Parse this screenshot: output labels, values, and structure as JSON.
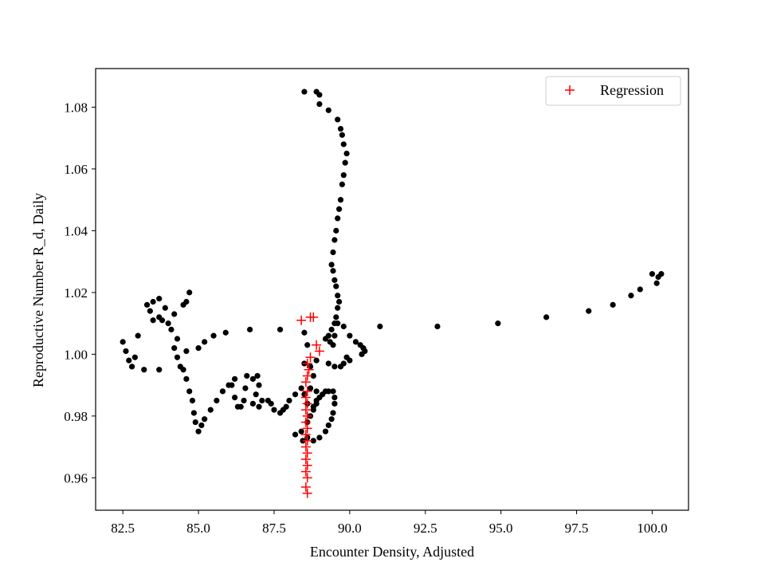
{
  "chart_data": {
    "type": "scatter",
    "xlabel": "Encounter Density, Adjusted",
    "ylabel": "Reproductive Number R_d, Daily",
    "xlim": [
      81.6,
      101.2
    ],
    "ylim": [
      0.9495,
      1.0925
    ],
    "xticks": [
      82.5,
      85.0,
      87.5,
      90.0,
      92.5,
      95.0,
      97.5,
      100.0
    ],
    "xtick_labels": [
      "82.5",
      "85.0",
      "87.5",
      "90.0",
      "92.5",
      "95.0",
      "97.5",
      "100.0"
    ],
    "yticks": [
      0.96,
      0.98,
      1.0,
      1.02,
      1.04,
      1.06,
      1.08
    ],
    "ytick_labels": [
      "0.96",
      "0.98",
      "1.00",
      "1.02",
      "1.04",
      "1.06",
      "1.08"
    ],
    "legend_position": "upper right",
    "series": [
      {
        "marker": "dot",
        "color": "#000000",
        "points": [
          [
            88.5,
            1.085
          ],
          [
            88.9,
            1.085
          ],
          [
            89.0,
            1.084
          ],
          [
            89.0,
            1.081
          ],
          [
            89.3,
            1.079
          ],
          [
            89.6,
            1.076
          ],
          [
            89.7,
            1.073
          ],
          [
            89.75,
            1.071
          ],
          [
            89.8,
            1.068
          ],
          [
            89.9,
            1.065
          ],
          [
            89.85,
            1.062
          ],
          [
            89.8,
            1.058
          ],
          [
            89.75,
            1.055
          ],
          [
            89.7,
            1.05
          ],
          [
            89.65,
            1.047
          ],
          [
            89.6,
            1.044
          ],
          [
            89.55,
            1.04
          ],
          [
            89.5,
            1.037
          ],
          [
            89.45,
            1.033
          ],
          [
            89.4,
            1.029
          ],
          [
            89.45,
            1.027
          ],
          [
            89.5,
            1.024
          ],
          [
            89.55,
            1.022
          ],
          [
            89.6,
            1.019
          ],
          [
            89.65,
            1.017
          ],
          [
            89.6,
            1.015
          ],
          [
            89.55,
            1.012
          ],
          [
            89.5,
            1.01
          ],
          [
            89.4,
            1.008
          ],
          [
            89.3,
            1.006
          ],
          [
            89.2,
            1.005
          ],
          [
            89.35,
            1.004
          ],
          [
            89.45,
            1.003
          ],
          [
            89.5,
            1.006
          ],
          [
            89.6,
            1.01
          ],
          [
            89.8,
            1.009
          ],
          [
            90.0,
            1.006
          ],
          [
            90.2,
            1.004
          ],
          [
            90.35,
            1.003
          ],
          [
            90.45,
            1.002
          ],
          [
            90.5,
            1.001
          ],
          [
            90.4,
            1.0
          ],
          [
            90.0,
            0.998
          ],
          [
            89.9,
            0.999
          ],
          [
            89.8,
            0.997
          ],
          [
            89.7,
            0.996
          ],
          [
            89.5,
            0.996
          ],
          [
            89.3,
            0.997
          ],
          [
            88.9,
            0.998
          ],
          [
            88.7,
            0.996
          ],
          [
            88.5,
            0.997
          ],
          [
            88.8,
            0.993
          ],
          [
            88.7,
            0.989
          ],
          [
            88.9,
            0.988
          ],
          [
            89.2,
            0.988
          ],
          [
            89.0,
            0.986
          ],
          [
            88.9,
            0.984
          ],
          [
            88.8,
            0.982
          ],
          [
            88.7,
            0.98
          ],
          [
            88.6,
            0.978
          ],
          [
            88.4,
            0.975
          ],
          [
            88.2,
            0.974
          ],
          [
            88.45,
            0.972
          ],
          [
            88.6,
            0.973
          ],
          [
            88.8,
            0.972
          ],
          [
            89.0,
            0.973
          ],
          [
            89.2,
            0.975
          ],
          [
            89.3,
            0.977
          ],
          [
            89.4,
            0.979
          ],
          [
            89.45,
            0.981
          ],
          [
            89.5,
            0.984
          ],
          [
            89.5,
            0.986
          ],
          [
            89.45,
            0.988
          ],
          [
            89.3,
            0.988
          ],
          [
            89.1,
            0.987
          ],
          [
            88.9,
            0.985
          ],
          [
            88.8,
            0.983
          ],
          [
            88.6,
            0.984
          ],
          [
            88.5,
            0.987
          ],
          [
            88.4,
            0.989
          ],
          [
            88.2,
            0.987
          ],
          [
            88.0,
            0.985
          ],
          [
            87.9,
            0.983
          ],
          [
            87.8,
            0.982
          ],
          [
            87.7,
            0.981
          ],
          [
            87.5,
            0.982
          ],
          [
            87.4,
            0.984
          ],
          [
            87.3,
            0.985
          ],
          [
            87.1,
            0.985
          ],
          [
            87.0,
            0.983
          ],
          [
            86.8,
            0.984
          ],
          [
            86.9,
            0.987
          ],
          [
            87.0,
            0.99
          ],
          [
            86.95,
            0.993
          ],
          [
            86.8,
            0.992
          ],
          [
            86.6,
            0.993
          ],
          [
            86.55,
            0.989
          ],
          [
            86.5,
            0.985
          ],
          [
            86.4,
            0.983
          ],
          [
            86.3,
            0.983
          ],
          [
            86.2,
            0.986
          ],
          [
            86.1,
            0.99
          ],
          [
            86.2,
            0.992
          ],
          [
            86.0,
            0.99
          ],
          [
            85.8,
            0.988
          ],
          [
            85.6,
            0.985
          ],
          [
            85.4,
            0.982
          ],
          [
            85.2,
            0.979
          ],
          [
            85.1,
            0.977
          ],
          [
            85.0,
            0.975
          ],
          [
            84.9,
            0.978
          ],
          [
            84.85,
            0.981
          ],
          [
            84.8,
            0.985
          ],
          [
            84.7,
            0.988
          ],
          [
            84.6,
            0.992
          ],
          [
            84.5,
            0.995
          ],
          [
            84.4,
            0.996
          ],
          [
            84.3,
            0.999
          ],
          [
            84.2,
            1.002
          ],
          [
            84.3,
            1.005
          ],
          [
            84.1,
            1.008
          ],
          [
            84.0,
            1.01
          ],
          [
            83.8,
            1.011
          ],
          [
            83.7,
            1.012
          ],
          [
            83.5,
            1.011
          ],
          [
            83.4,
            1.014
          ],
          [
            83.3,
            1.016
          ],
          [
            83.5,
            1.017
          ],
          [
            83.7,
            1.018
          ],
          [
            83.9,
            1.015
          ],
          [
            84.2,
            1.013
          ],
          [
            84.5,
            1.016
          ],
          [
            84.6,
            1.017
          ],
          [
            84.7,
            1.02
          ],
          [
            82.5,
            1.004
          ],
          [
            82.6,
            1.001
          ],
          [
            82.7,
            0.998
          ],
          [
            82.8,
            0.996
          ],
          [
            82.9,
            0.999
          ],
          [
            83.0,
            1.006
          ],
          [
            83.2,
            0.995
          ],
          [
            83.7,
            0.995
          ],
          [
            84.6,
            1.001
          ],
          [
            85.0,
            1.002
          ],
          [
            85.2,
            1.004
          ],
          [
            85.5,
            1.006
          ],
          [
            85.9,
            1.007
          ],
          [
            86.7,
            1.008
          ],
          [
            87.7,
            1.008
          ],
          [
            91.0,
            1.009
          ],
          [
            92.9,
            1.009
          ],
          [
            94.9,
            1.01
          ],
          [
            96.5,
            1.012
          ],
          [
            97.9,
            1.014
          ],
          [
            98.7,
            1.016
          ],
          [
            99.3,
            1.019
          ],
          [
            99.6,
            1.021
          ],
          [
            100.0,
            1.026
          ],
          [
            100.2,
            1.025
          ],
          [
            100.3,
            1.026
          ],
          [
            100.15,
            1.023
          ],
          [
            88.5,
            1.007
          ],
          [
            88.6,
            1.003
          ]
        ]
      },
      {
        "name": "Regression",
        "marker": "plus",
        "color": "#ff0000",
        "points": [
          [
            88.4,
            1.011
          ],
          [
            88.7,
            1.012
          ],
          [
            88.8,
            1.012
          ],
          [
            88.9,
            1.003
          ],
          [
            89.0,
            1.001
          ],
          [
            88.7,
            0.999
          ],
          [
            88.6,
            0.997
          ],
          [
            88.65,
            0.995
          ],
          [
            88.6,
            0.993
          ],
          [
            88.55,
            0.991
          ],
          [
            88.6,
            0.988
          ],
          [
            88.55,
            0.986
          ],
          [
            88.6,
            0.984
          ],
          [
            88.55,
            0.982
          ],
          [
            88.6,
            0.98
          ],
          [
            88.55,
            0.978
          ],
          [
            88.6,
            0.976
          ],
          [
            88.55,
            0.974
          ],
          [
            88.6,
            0.972
          ],
          [
            88.55,
            0.97
          ],
          [
            88.6,
            0.968
          ],
          [
            88.55,
            0.966
          ],
          [
            88.6,
            0.964
          ],
          [
            88.55,
            0.962
          ],
          [
            88.6,
            0.96
          ],
          [
            88.55,
            0.957
          ],
          [
            88.6,
            0.955
          ]
        ]
      }
    ]
  }
}
